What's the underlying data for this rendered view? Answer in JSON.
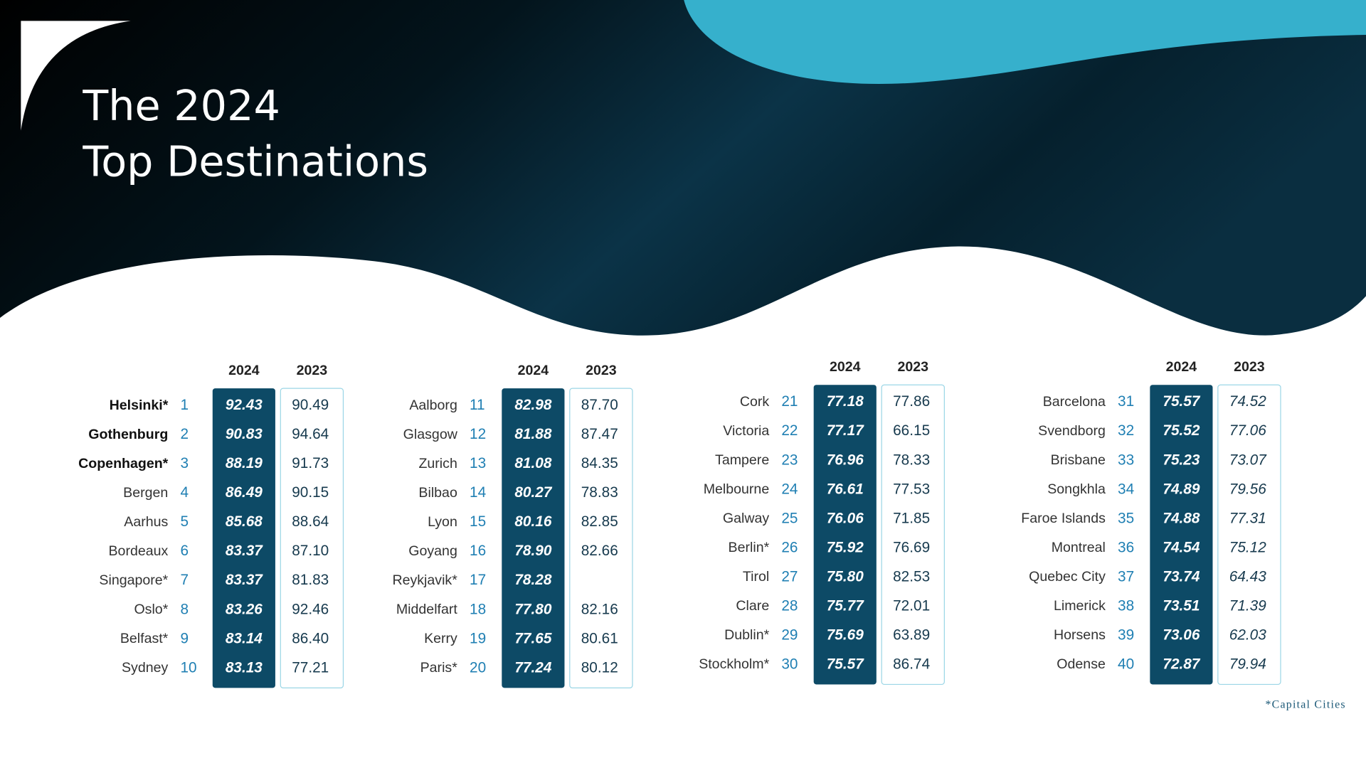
{
  "header": {
    "title": [
      "The 2024",
      "Top Destinations"
    ]
  },
  "tables": [
    {
      "columns": [
        "2024",
        "2023"
      ],
      "rows": [
        [
          "Helsinki*",
          1,
          "92.43",
          "90.49"
        ],
        [
          "Gothenburg",
          2,
          "90.83",
          "94.64"
        ],
        [
          "Copenhagen*",
          3,
          "88.19",
          "91.73"
        ],
        [
          "Bergen",
          4,
          "86.49",
          "90.15"
        ],
        [
          "Aarhus",
          5,
          "85.68",
          "88.64"
        ],
        [
          "Bordeaux",
          6,
          "83.37",
          "87.10"
        ],
        [
          "Singapore*",
          7,
          "83.37",
          "81.83"
        ],
        [
          "Oslo*",
          8,
          "83.26",
          "92.46"
        ],
        [
          "Belfast*",
          9,
          "83.14",
          "86.40"
        ],
        [
          "Sydney",
          10,
          "83.13",
          "77.21"
        ]
      ]
    },
    {
      "columns": [
        "2024",
        "2023"
      ],
      "rows": [
        [
          "Aalborg",
          11,
          "82.98",
          "87.70"
        ],
        [
          "Glasgow",
          12,
          "81.88",
          "87.47"
        ],
        [
          "Zurich",
          13,
          "81.08",
          "84.35"
        ],
        [
          "Bilbao",
          14,
          "80.27",
          "78.83"
        ],
        [
          "Lyon",
          15,
          "80.16",
          "82.85"
        ],
        [
          "Goyang",
          16,
          "78.90",
          "82.66"
        ],
        [
          "Reykjavik*",
          17,
          "78.28",
          null
        ],
        [
          "Middelfart",
          18,
          "77.80",
          "82.16"
        ],
        [
          "Kerry",
          19,
          "77.65",
          "80.61"
        ],
        [
          "Paris*",
          20,
          "77.24",
          "80.12"
        ]
      ]
    },
    {
      "columns": [
        "2024",
        "2023"
      ],
      "rows": [
        [
          "Cork",
          21,
          "77.18",
          "77.86"
        ],
        [
          "Victoria",
          22,
          "77.17",
          "66.15"
        ],
        [
          "Tampere",
          23,
          "76.96",
          "78.33"
        ],
        [
          "Melbourne",
          24,
          "76.61",
          "77.53"
        ],
        [
          "Galway",
          25,
          "76.06",
          "71.85"
        ],
        [
          "Berlin*",
          26,
          "75.92",
          "76.69"
        ],
        [
          "Tirol",
          27,
          "75.80",
          "82.53"
        ],
        [
          "Clare",
          28,
          "75.77",
          "72.01"
        ],
        [
          "Dublin*",
          29,
          "75.69",
          "63.89"
        ],
        [
          "Stockholm*",
          30,
          "75.57",
          "86.74"
        ]
      ]
    },
    {
      "columns": [
        "2024",
        "2023"
      ],
      "rows": [
        [
          "Barcelona",
          31,
          "75.57",
          "74.52"
        ],
        [
          "Svendborg",
          32,
          "75.52",
          "77.06"
        ],
        [
          "Brisbane",
          33,
          "75.23",
          "73.07"
        ],
        [
          "Songkhla",
          34,
          "74.89",
          "79.56"
        ],
        [
          "Faroe Islands",
          35,
          "74.88",
          "77.31"
        ],
        [
          "Montreal",
          36,
          "74.54",
          "75.12"
        ],
        [
          "Quebec City",
          37,
          "73.74",
          "64.43"
        ],
        [
          "Limerick",
          38,
          "73.51",
          "71.39"
        ],
        [
          "Horsens",
          39,
          "73.06",
          "62.03"
        ],
        [
          "Odense",
          40,
          "72.87",
          "79.94"
        ]
      ]
    }
  ],
  "footnote": "*Capital Cities"
}
